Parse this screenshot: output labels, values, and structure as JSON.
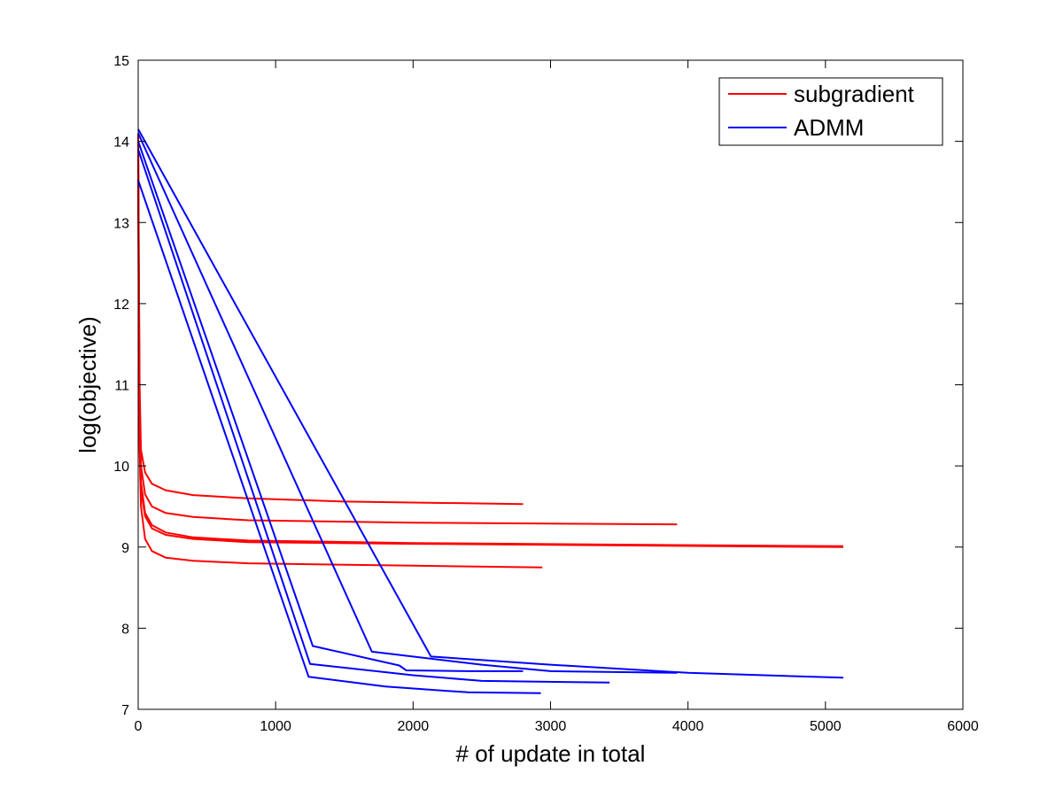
{
  "chart_data": {
    "type": "line",
    "title": "",
    "xlabel": "# of update in total",
    "ylabel": "log(objective)",
    "xlim": [
      0,
      6000
    ],
    "ylim": [
      7,
      15
    ],
    "xticks": [
      0,
      1000,
      2000,
      3000,
      4000,
      5000,
      6000
    ],
    "yticks": [
      7,
      8,
      9,
      10,
      11,
      12,
      13,
      14,
      15
    ],
    "grid": false,
    "legend_placement": "top-right",
    "legend": [
      {
        "label": "subgradient",
        "color": "#ff0000"
      },
      {
        "label": "ADMM",
        "color": "#0000ff"
      }
    ],
    "series": [
      {
        "group": "subgradient",
        "color": "#ff0000",
        "points": [
          [
            0,
            14.1
          ],
          [
            5,
            12.5
          ],
          [
            10,
            11
          ],
          [
            20,
            10.2
          ],
          [
            50,
            9.92
          ],
          [
            100,
            9.78
          ],
          [
            200,
            9.7
          ],
          [
            400,
            9.64
          ],
          [
            800,
            9.6
          ],
          [
            1500,
            9.56
          ],
          [
            2800,
            9.53
          ]
        ]
      },
      {
        "group": "subgradient",
        "color": "#ff0000",
        "points": [
          [
            0,
            14.0
          ],
          [
            5,
            12.2
          ],
          [
            10,
            10.8
          ],
          [
            20,
            10.0
          ],
          [
            50,
            9.65
          ],
          [
            100,
            9.5
          ],
          [
            200,
            9.42
          ],
          [
            400,
            9.37
          ],
          [
            800,
            9.33
          ],
          [
            2000,
            9.3
          ],
          [
            3920,
            9.28
          ]
        ]
      },
      {
        "group": "subgradient",
        "color": "#ff0000",
        "points": [
          [
            0,
            13.9
          ],
          [
            5,
            12.0
          ],
          [
            10,
            10.6
          ],
          [
            20,
            9.8
          ],
          [
            50,
            9.42
          ],
          [
            100,
            9.27
          ],
          [
            200,
            9.18
          ],
          [
            400,
            9.12
          ],
          [
            800,
            9.08
          ],
          [
            2000,
            9.05
          ],
          [
            3500,
            9.03
          ],
          [
            5130,
            9.01
          ]
        ]
      },
      {
        "group": "subgradient",
        "color": "#ff0000",
        "points": [
          [
            0,
            13.8
          ],
          [
            5,
            11.8
          ],
          [
            10,
            10.5
          ],
          [
            20,
            9.7
          ],
          [
            50,
            9.38
          ],
          [
            100,
            9.23
          ],
          [
            200,
            9.15
          ],
          [
            400,
            9.1
          ],
          [
            800,
            9.06
          ],
          [
            2000,
            9.04
          ],
          [
            3500,
            9.02
          ],
          [
            5130,
            9.0
          ]
        ]
      },
      {
        "group": "subgradient",
        "color": "#ff0000",
        "points": [
          [
            0,
            13.5
          ],
          [
            5,
            11.5
          ],
          [
            10,
            10.2
          ],
          [
            20,
            9.5
          ],
          [
            50,
            9.1
          ],
          [
            100,
            8.95
          ],
          [
            200,
            8.87
          ],
          [
            400,
            8.83
          ],
          [
            800,
            8.8
          ],
          [
            2000,
            8.77
          ],
          [
            2940,
            8.75
          ]
        ]
      },
      {
        "group": "ADMM",
        "color": "#0000ff",
        "points": [
          [
            0,
            14.15
          ],
          [
            2130,
            7.65
          ],
          [
            3000,
            7.55
          ],
          [
            4000,
            7.45
          ],
          [
            5130,
            7.39
          ]
        ]
      },
      {
        "group": "ADMM",
        "color": "#0000ff",
        "points": [
          [
            0,
            14.1
          ],
          [
            1700,
            7.71
          ],
          [
            2500,
            7.55
          ],
          [
            3000,
            7.47
          ],
          [
            3920,
            7.45
          ]
        ]
      },
      {
        "group": "ADMM",
        "color": "#0000ff",
        "points": [
          [
            0,
            14.0
          ],
          [
            1270,
            7.78
          ],
          [
            1900,
            7.54
          ],
          [
            1950,
            7.48
          ],
          [
            2400,
            7.47
          ],
          [
            2800,
            7.47
          ]
        ]
      },
      {
        "group": "ADMM",
        "color": "#0000ff",
        "points": [
          [
            0,
            13.9
          ],
          [
            1250,
            7.56
          ],
          [
            2000,
            7.42
          ],
          [
            2500,
            7.35
          ],
          [
            3430,
            7.33
          ]
        ]
      },
      {
        "group": "ADMM",
        "color": "#0000ff",
        "points": [
          [
            0,
            13.52
          ],
          [
            1240,
            7.4
          ],
          [
            1800,
            7.28
          ],
          [
            2400,
            7.21
          ],
          [
            2930,
            7.2
          ]
        ]
      }
    ]
  }
}
